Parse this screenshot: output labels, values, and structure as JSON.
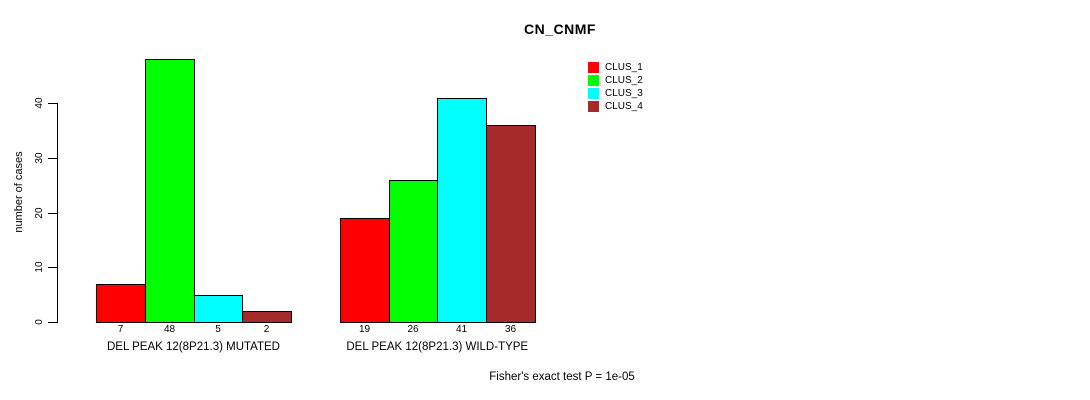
{
  "chart_data": {
    "type": "bar",
    "title": "CN_CNMF",
    "ylabel": "number of cases",
    "xlabel": "",
    "yticks": [
      0,
      10,
      20,
      30,
      40
    ],
    "ylim": [
      0,
      50
    ],
    "grid": false,
    "legend_position": "top-right",
    "legend": [
      {
        "label": "CLUS_1",
        "color": "#ff0000"
      },
      {
        "label": "CLUS_2",
        "color": "#00ff00"
      },
      {
        "label": "CLUS_3",
        "color": "#00ffff"
      },
      {
        "label": "CLUS_4",
        "color": "#a52a2a"
      }
    ],
    "groups": [
      {
        "label": "DEL PEAK 12(8P21.3) MUTATED",
        "values": [
          7,
          48,
          5,
          2
        ]
      },
      {
        "label": "DEL PEAK 12(8P21.3) WILD-TYPE",
        "values": [
          19,
          26,
          41,
          36
        ]
      }
    ],
    "value_labels_shown": true,
    "annotation": "Fisher's exact test P = 1e-05",
    "colors": {
      "background": "#ffffff",
      "axis": "#000000",
      "text": "#000000"
    }
  }
}
